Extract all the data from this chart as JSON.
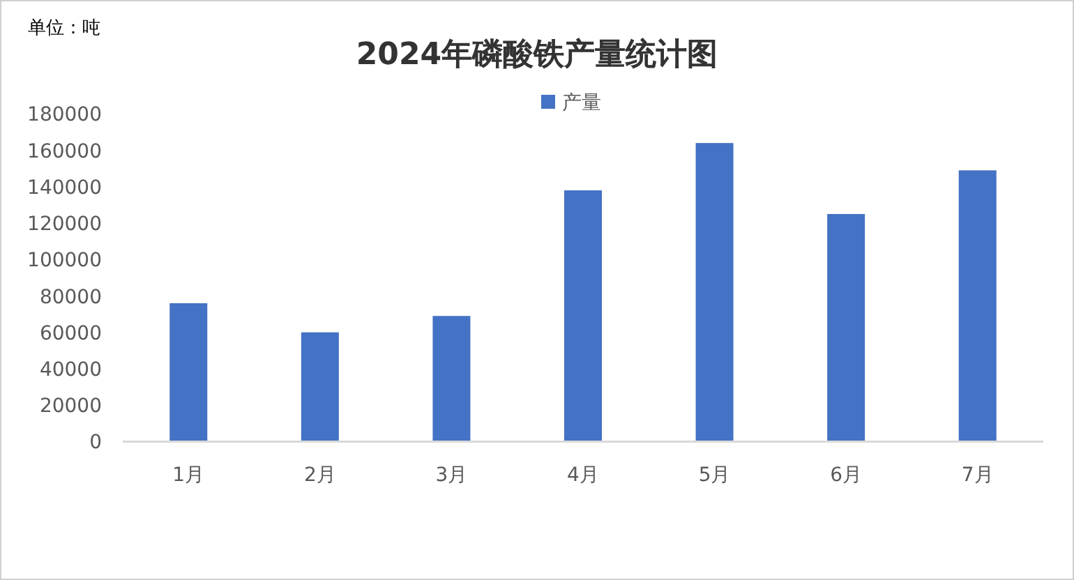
{
  "chart_data": {
    "type": "bar",
    "title": "2024年磷酸铁产量统计图",
    "ylabel": "单位：吨",
    "categories": [
      "1月",
      "2月",
      "3月",
      "4月",
      "5月",
      "6月",
      "7月"
    ],
    "series": [
      {
        "name": "产量",
        "color": "#4472c4",
        "values": [
          76000,
          60000,
          69000,
          138000,
          164000,
          125000,
          149000
        ]
      }
    ],
    "ylim": [
      0,
      180000
    ],
    "yticks": [
      0,
      20000,
      40000,
      60000,
      80000,
      100000,
      120000,
      140000,
      160000,
      180000
    ],
    "grid": false,
    "legend": "top"
  }
}
